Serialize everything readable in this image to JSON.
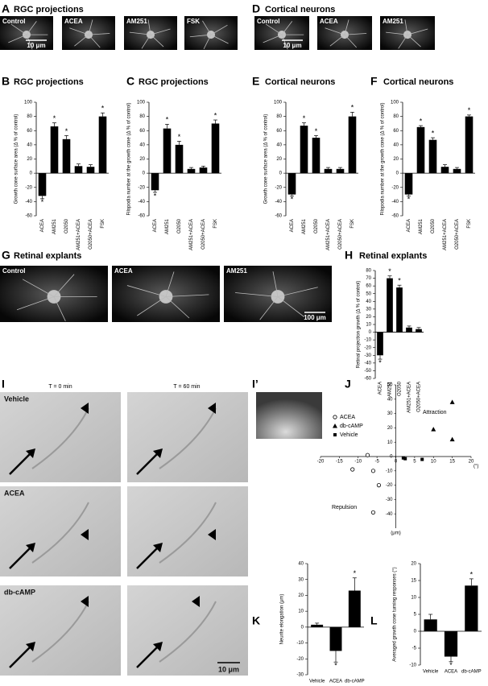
{
  "image_panels": [
    {
      "letter": "A",
      "title": "RGC projections",
      "images": [
        "Control",
        "ACEA",
        "AM251",
        "FSK"
      ],
      "scale_bar": "10 μm"
    },
    {
      "letter": "D",
      "title": "Cortical neurons",
      "images": [
        "Control",
        "ACEA",
        "AM251"
      ],
      "scale_bar": "10 μm"
    },
    {
      "letter": "G",
      "title": "Retinal explants",
      "images": [
        "Control",
        "ACEA",
        "AM251"
      ],
      "scale_bar": "100 μm"
    }
  ],
  "timelapse": {
    "letter": "I",
    "time_labels": [
      "T = 0 min",
      "T = 60 min"
    ],
    "rows": [
      "Vehicle",
      "ACEA",
      "db-cAMP"
    ],
    "scale_bar": "10 μm"
  },
  "inset": {
    "letter": "I’"
  },
  "chart_data": [
    {
      "type": "bar",
      "panel": "B",
      "title": "RGC projections",
      "y_label": "Growth cone surface area (Δ % of control)",
      "categories": [
        "ACEA",
        "AM251",
        "O2050",
        "AM251+ACEA",
        "O2050+ACEA",
        "FSK"
      ],
      "values": [
        -32,
        66,
        48,
        10,
        9,
        80
      ],
      "errors": [
        4,
        5,
        5,
        3,
        3,
        5
      ],
      "annotations": [
        "*",
        "*",
        "*",
        null,
        null,
        "*"
      ],
      "color": "#000000",
      "ylim": [
        -60,
        100
      ],
      "yticks": [
        -60,
        -40,
        -20,
        0,
        20,
        40,
        60,
        80,
        100
      ]
    },
    {
      "type": "bar",
      "panel": "C",
      "title": "RGC projections",
      "y_label": "Filopodia number at the growth cone (Δ % of control)",
      "categories": [
        "ACEA",
        "AM251",
        "O2050",
        "AM251+ACEA",
        "O2050+ACEA",
        "FSK"
      ],
      "values": [
        -24,
        63,
        40,
        6,
        8,
        70
      ],
      "errors": [
        3,
        6,
        5,
        2,
        2,
        5
      ],
      "annotations": [
        "*",
        "*",
        "*",
        null,
        null,
        "*"
      ],
      "color": "#000000",
      "ylim": [
        -60,
        100
      ],
      "yticks": [
        -60,
        -40,
        -20,
        0,
        20,
        40,
        60,
        80,
        100
      ]
    },
    {
      "type": "bar",
      "panel": "E",
      "title": "Cortical neurons",
      "y_label": "Growth cone surface area (Δ % of control)",
      "categories": [
        "ACEA",
        "AM251",
        "O2050",
        "AM251+ACEA",
        "O2050+ACEA",
        "FSK"
      ],
      "values": [
        -30,
        67,
        50,
        6,
        6,
        80
      ],
      "errors": [
        2,
        4,
        3,
        2,
        2,
        6
      ],
      "annotations": [
        "*",
        "*",
        "*",
        null,
        null,
        "*"
      ],
      "color": "#000000",
      "ylim": [
        -60,
        100
      ],
      "yticks": [
        -60,
        -40,
        -20,
        0,
        20,
        40,
        60,
        80,
        100
      ]
    },
    {
      "type": "bar",
      "panel": "F",
      "title": "Cortical neurons",
      "y_label": "Filopodia number at the growth cone (Δ % of control)",
      "categories": [
        "ACEA",
        "AM251",
        "O2050",
        "AM251+ACEA",
        "O2050+ACEA",
        "FSK"
      ],
      "values": [
        -30,
        65,
        47,
        9,
        6,
        80
      ],
      "errors": [
        2,
        2,
        3,
        3,
        2,
        2
      ],
      "annotations": [
        "*",
        "*",
        "*",
        null,
        null,
        "*"
      ],
      "color": "#000000",
      "ylim": [
        -60,
        100
      ],
      "yticks": [
        -60,
        -40,
        -20,
        0,
        20,
        40,
        60,
        80,
        100
      ]
    },
    {
      "type": "bar",
      "panel": "H",
      "title": "Retinal explants",
      "y_label": "Retinal projection growth (Δ % of control)",
      "categories": [
        "ACEA",
        "AM251",
        "O2050",
        "AM251+ACEA",
        "O2050+ACEA"
      ],
      "values": [
        -30,
        70,
        58,
        6,
        4
      ],
      "errors": [
        5,
        3,
        3,
        2,
        2
      ],
      "annotations": [
        "*",
        "*",
        "*",
        null,
        null
      ],
      "color": "#000000",
      "ylim": [
        -60,
        80
      ],
      "yticks": [
        -60,
        -50,
        -40,
        -30,
        -20,
        -10,
        0,
        10,
        20,
        30,
        40,
        50,
        60,
        70,
        80
      ]
    },
    {
      "type": "scatter",
      "panel": "J",
      "x_label": "(°)",
      "y_label": "(μm)",
      "annotations": [
        "Attraction",
        "Repulsion"
      ],
      "legend": "top-left",
      "series": [
        {
          "name": "ACEA",
          "marker": "circle-open",
          "color": "#000000",
          "x": [
            -7.5,
            -11.5,
            -6,
            -4.5,
            -6
          ],
          "values": [
            1,
            -9,
            -10,
            -20,
            -39
          ]
        },
        {
          "name": "db-cAMP",
          "marker": "triangle",
          "color": "#000000",
          "x": [
            10,
            15,
            15
          ],
          "values": [
            19,
            38,
            12
          ]
        },
        {
          "name": "Vehicle",
          "marker": "square",
          "color": "#000000",
          "x": [
            2,
            2.5,
            7
          ],
          "values": [
            -1,
            -1.5,
            -2
          ]
        }
      ],
      "xlim": [
        -20,
        20
      ],
      "ylim": [
        -50,
        50
      ],
      "xticks": [
        -20,
        -15,
        -10,
        -5,
        0,
        5,
        10,
        15,
        20
      ],
      "yticks": [
        -40,
        -30,
        -20,
        -10,
        0,
        10,
        20,
        30,
        40,
        50
      ]
    },
    {
      "type": "bar",
      "panel": "K",
      "y_label": "Neurite elongation (μm)",
      "categories": [
        "Vehicle",
        "ACEA",
        "db-cAMP"
      ],
      "values": [
        1.5,
        -15,
        23
      ],
      "errors": [
        1,
        7,
        8
      ],
      "annotations": [
        null,
        "*",
        "*"
      ],
      "color": "#000000",
      "ylim": [
        -30,
        40
      ],
      "yticks": [
        -30,
        -20,
        -10,
        0,
        10,
        20,
        30,
        40
      ]
    },
    {
      "type": "bar",
      "panel": "L",
      "y_label": "Averaged growth cone turning responses (°)",
      "categories": [
        "Vehicle",
        "ACEA",
        "db-cAMP"
      ],
      "values": [
        3.5,
        -7.5,
        13.5
      ],
      "errors": [
        1.5,
        1.5,
        2
      ],
      "annotations": [
        null,
        "*",
        "*"
      ],
      "color": "#000000",
      "ylim": [
        -10,
        20
      ],
      "yticks": [
        -10,
        -5,
        0,
        5,
        10,
        15,
        20
      ]
    }
  ]
}
